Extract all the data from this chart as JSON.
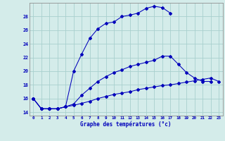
{
  "bg_color": "#d4ecea",
  "grid_color": "#a8d0ce",
  "line_color": "#0000bb",
  "xlabel": "Graphe des températures (°c)",
  "x_hours": [
    0,
    1,
    2,
    3,
    4,
    5,
    6,
    7,
    8,
    9,
    10,
    11,
    12,
    13,
    14,
    15,
    16,
    17,
    18,
    19,
    20,
    21,
    22,
    23
  ],
  "ylim_min": 13.5,
  "ylim_max": 30.0,
  "yticks": [
    14,
    16,
    18,
    20,
    22,
    24,
    26,
    28
  ],
  "line1_y": [
    16.0,
    14.5,
    14.5,
    14.5,
    14.8,
    20.0,
    22.5,
    24.8,
    26.2,
    27.0,
    27.2,
    28.0,
    28.2,
    28.5,
    29.2,
    29.5,
    29.3,
    28.5,
    null,
    null,
    null,
    null,
    null,
    null
  ],
  "line2_y": [
    16.0,
    14.5,
    14.5,
    14.5,
    14.8,
    15.2,
    16.5,
    17.5,
    18.5,
    19.2,
    19.8,
    20.2,
    20.7,
    21.0,
    21.3,
    21.6,
    22.2,
    22.2,
    21.0,
    19.8,
    19.0,
    18.5,
    18.5,
    null
  ],
  "line3_y": [
    16.0,
    14.5,
    14.5,
    14.5,
    14.8,
    15.0,
    15.3,
    15.6,
    16.0,
    16.3,
    16.6,
    16.8,
    17.0,
    17.3,
    17.5,
    17.7,
    17.9,
    18.0,
    18.2,
    18.4,
    18.6,
    18.8,
    19.0,
    18.5
  ]
}
